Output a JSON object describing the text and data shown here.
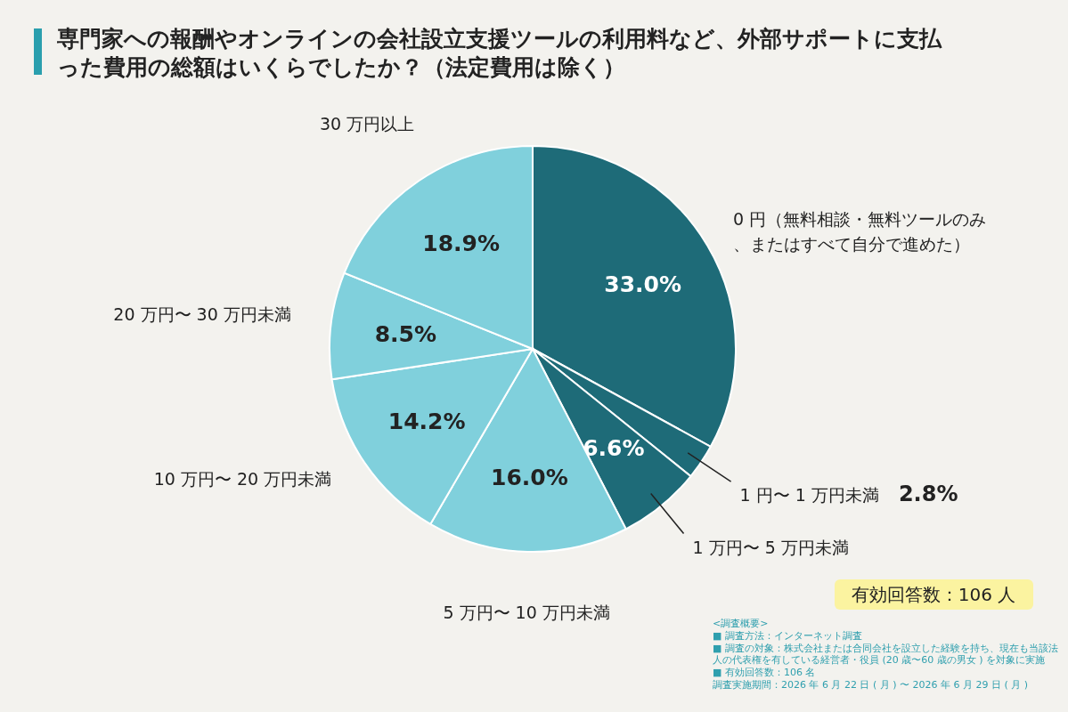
{
  "chart_data": {
    "type": "pie",
    "title": "専門家への報酬やオンラインの会社設立支援ツールの利用料など、外部サポートに支払った費用の総額はいくらでしたか？（法定費用は除く）",
    "categories": [
      "0 円（無料相談・無料ツールのみ、またはすべて自分で進めた）",
      "1 円〜 1 万円未満",
      "1 万円〜 5 万円未満",
      "5 万円〜 10 万円未満",
      "10 万円〜 20 万円未満",
      "20 万円〜 30 万円未満",
      "30 万円以上"
    ],
    "values": [
      33.0,
      2.8,
      6.6,
      16.0,
      14.2,
      8.5,
      18.9
    ],
    "value_labels": [
      "33.0%",
      "2.8%",
      "6.6%",
      "16.0%",
      "14.2%",
      "8.5%",
      "18.9%"
    ],
    "colors": [
      "#1e6b78",
      "#1e6b78",
      "#1e6b78",
      "#80d0dc",
      "#80d0dc",
      "#80d0dc",
      "#80d0dc"
    ],
    "annotations": [
      "有効回答数：106 人",
      "<調査概要>",
      "■ 調査方法：インターネット調査",
      "■ 調査の対象：株式会社または合同会社を設立した経験を持ち、現在も当該法人の代表権を有している経営者・役員 (20 歳〜60 歳の男女 ) を対象に実施",
      "■ 有効回答数：106 名",
      "調査実施期間：2026 年 6 月 22 日 ( 月 ) 〜 2026 年 6 月 29 日 ( 月 )"
    ]
  }
}
